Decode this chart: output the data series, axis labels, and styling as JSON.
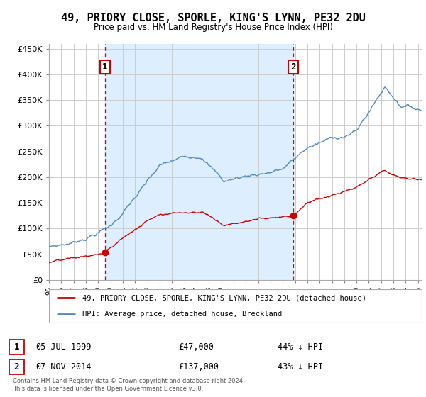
{
  "title": "49, PRIORY CLOSE, SPORLE, KING'S LYNN, PE32 2DU",
  "subtitle": "Price paid vs. HM Land Registry's House Price Index (HPI)",
  "legend_line1": "49, PRIORY CLOSE, SPORLE, KING'S LYNN, PE32 2DU (detached house)",
  "legend_line2": "HPI: Average price, detached house, Breckland",
  "sale1_date": "05-JUL-1999",
  "sale1_price": "£47,000",
  "sale1_hpi": "44% ↓ HPI",
  "sale2_date": "07-NOV-2014",
  "sale2_price": "£137,000",
  "sale2_hpi": "43% ↓ HPI",
  "footnote": "Contains HM Land Registry data © Crown copyright and database right 2024.\nThis data is licensed under the Open Government Licence v3.0.",
  "red_color": "#cc0000",
  "blue_color": "#5588bb",
  "vline_color": "#cc0000",
  "grid_color": "#cccccc",
  "fill_color": "#ddeeff",
  "ylim": [
    0,
    460000
  ],
  "yticks": [
    0,
    50000,
    100000,
    150000,
    200000,
    250000,
    300000,
    350000,
    400000,
    450000
  ],
  "sale1_year": 1999.54,
  "sale2_year": 2014.85,
  "xmin": 1995.0,
  "xmax": 2025.3
}
